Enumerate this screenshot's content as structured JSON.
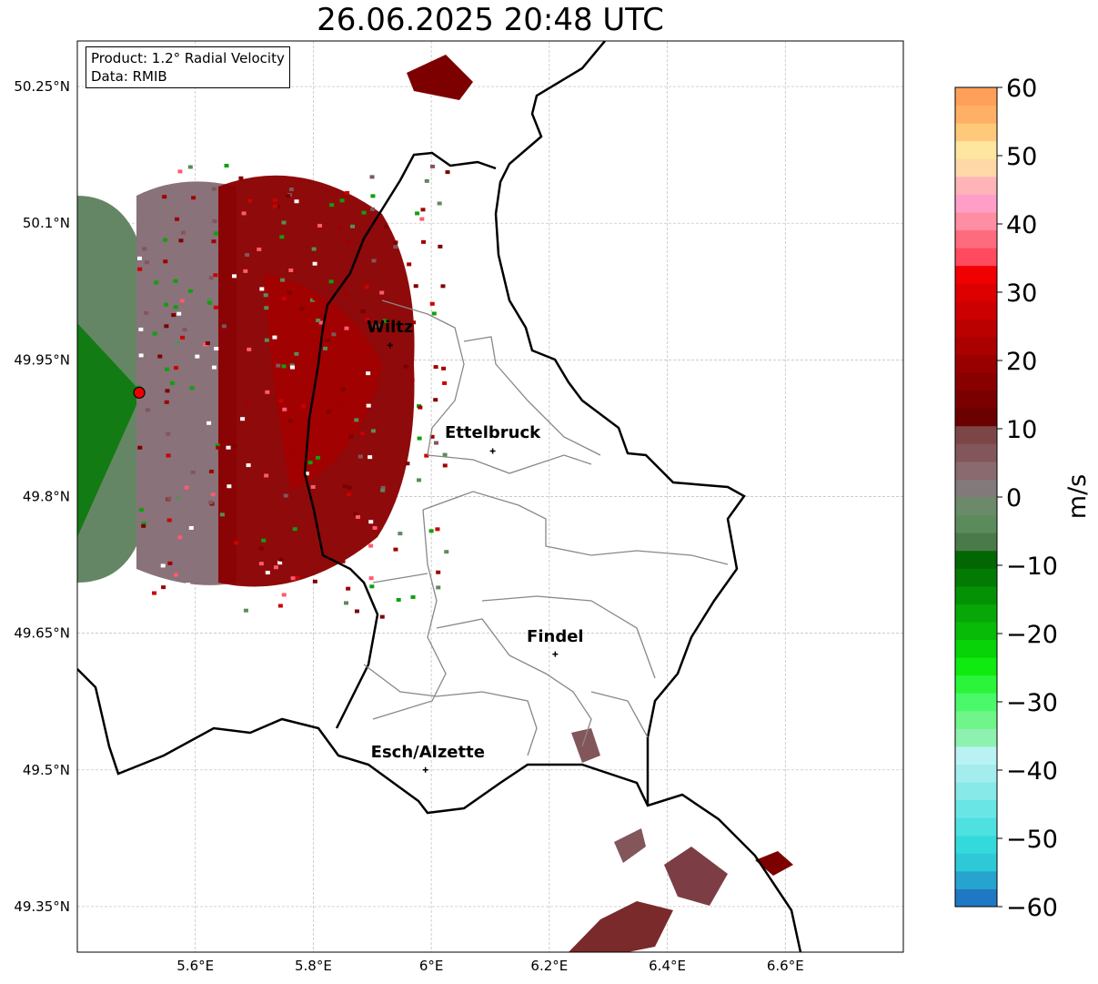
{
  "title": "26.06.2025 20:48 UTC",
  "info_box": {
    "product": "Product: 1.2° Radial Velocity",
    "data_source": "Data: RMIB"
  },
  "map": {
    "lat_labels": [
      "50.25°N",
      "50.1°N",
      "49.95°N",
      "49.8°N",
      "49.65°N",
      "49.5°N",
      "49.35°N"
    ],
    "lat_values": [
      50.25,
      50.1,
      49.95,
      49.8,
      49.65,
      49.5,
      49.35
    ],
    "lon_labels": [
      "5.6°E",
      "5.8°E",
      "6°E",
      "6.2°E",
      "6.4°E",
      "6.6°E"
    ],
    "lon_values": [
      5.6,
      5.8,
      6.0,
      6.2,
      6.4,
      6.6
    ],
    "extent": {
      "lon_min": 5.4,
      "lon_max": 6.8,
      "lat_min": 49.3,
      "lat_max": 50.3
    },
    "cities": [
      {
        "name": "Wiltz",
        "lon": 5.93,
        "lat": 49.966
      },
      {
        "name": "Ettelbruck",
        "lon": 6.104,
        "lat": 49.85
      },
      {
        "name": "Findel",
        "lon": 6.21,
        "lat": 49.627
      },
      {
        "name": "Esch/Alzette",
        "lon": 5.99,
        "lat": 49.5
      }
    ],
    "radar_site": {
      "lon": 5.505,
      "lat": 49.914
    }
  },
  "colorbar": {
    "unit": "m/s",
    "min": -60,
    "max": 60,
    "tick_labels": [
      "60",
      "50",
      "40",
      "30",
      "20",
      "10",
      "0",
      "−10",
      "−20",
      "−30",
      "−40",
      "−50",
      "−60"
    ],
    "tick_values": [
      60,
      50,
      40,
      30,
      20,
      10,
      0,
      -10,
      -20,
      -30,
      -40,
      -50,
      -60
    ],
    "colors_bottom_to_top": [
      "#1f78c3",
      "#27a3d0",
      "#2ec9d6",
      "#34dadb",
      "#4fe0e0",
      "#6ae5e5",
      "#88e9e9",
      "#a3edee",
      "#baf2f3",
      "#8df2b0",
      "#6ff58a",
      "#49f96a",
      "#2af53a",
      "#0fea10",
      "#08d208",
      "#07bb07",
      "#06a706",
      "#049104",
      "#037a03",
      "#026602",
      "#4a7a4a",
      "#5b8b5b",
      "#6a8a6a",
      "#827a7a",
      "#8a6a6e",
      "#82565b",
      "#7d4646",
      "#6a0000",
      "#7a0000",
      "#880000",
      "#980000",
      "#aa0000",
      "#bb0000",
      "#cc0000",
      "#dd0000",
      "#f00000",
      "#ff4a5f",
      "#ff6b7e",
      "#ff8ea2",
      "#ff9fc7",
      "#ffb4b7",
      "#ffd8a8",
      "#ffe6a0",
      "#ffc97a",
      "#ffb066",
      "#ffa05a"
    ]
  }
}
